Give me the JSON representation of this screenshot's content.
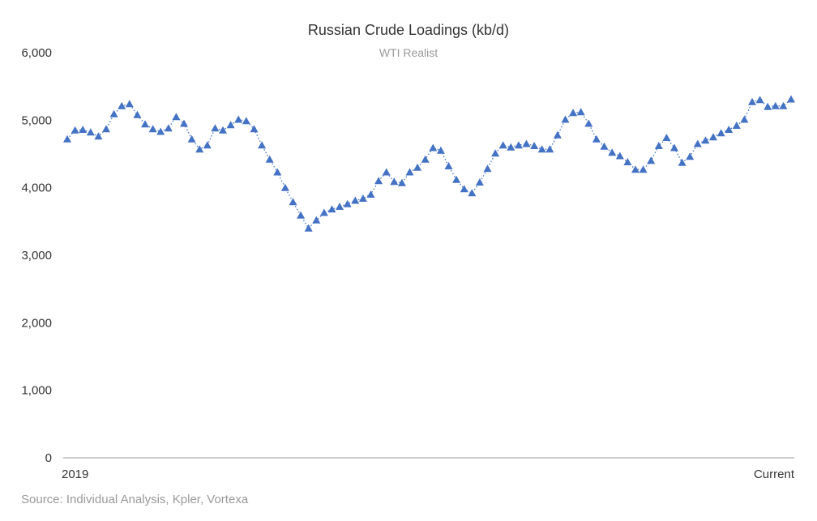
{
  "chart_data": {
    "type": "line",
    "title": "Russian Crude Loadings (kb/d)",
    "subtitle": "WTI Realist",
    "source": "Source: Individual Analysis, Kpler, Vortexa",
    "x_tick_labels": [
      "2019",
      "Current"
    ],
    "y_ticks": [
      "0",
      "1,000",
      "2,000",
      "3,000",
      "4,000",
      "5,000",
      "6,000"
    ],
    "ylim": [
      0,
      6000
    ],
    "grid": false,
    "series": [
      {
        "color": "#4472c4",
        "marker": "triangle",
        "line_style": "dotted",
        "values": [
          4720,
          4850,
          4860,
          4820,
          4760,
          4870,
          5090,
          5210,
          5240,
          5080,
          4940,
          4870,
          4830,
          4880,
          5050,
          4950,
          4720,
          4570,
          4630,
          4880,
          4850,
          4930,
          5010,
          4990,
          4870,
          4630,
          4420,
          4230,
          4000,
          3790,
          3590,
          3400,
          3520,
          3630,
          3680,
          3720,
          3760,
          3810,
          3840,
          3900,
          4100,
          4230,
          4090,
          4070,
          4230,
          4300,
          4420,
          4590,
          4550,
          4320,
          4120,
          3980,
          3920,
          4080,
          4280,
          4510,
          4630,
          4600,
          4630,
          4650,
          4620,
          4570,
          4570,
          4780,
          5010,
          5110,
          5120,
          4950,
          4720,
          4610,
          4520,
          4470,
          4380,
          4270,
          4270,
          4400,
          4620,
          4740,
          4590,
          4370,
          4460,
          4650,
          4700,
          4750,
          4810,
          4860,
          4920,
          5010,
          5270,
          5300,
          5200,
          5210,
          5210,
          5310
        ]
      }
    ]
  }
}
